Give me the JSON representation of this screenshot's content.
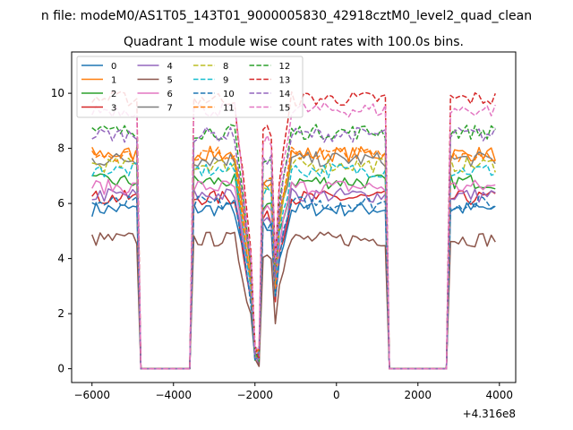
{
  "figure": {
    "suptitle": "n file: modeM0/AS1T05_143T01_9000005830_42918cztM0_level2_quad_clean"
  },
  "chart_data": {
    "type": "line",
    "title": "Quadrant 1 module wise count rates with 100.0s bins.",
    "xlabel": "",
    "ylabel": "",
    "x_offset_label": "+4.316e8",
    "xlim": [
      -6500,
      4400
    ],
    "ylim": [
      -0.5,
      11.5
    ],
    "xticks": [
      -6000,
      -4000,
      -2000,
      0,
      2000,
      4000
    ],
    "xtick_labels": [
      "−6000",
      "−4000",
      "−2000",
      "0",
      "2000",
      "4000"
    ],
    "yticks": [
      0,
      2,
      4,
      6,
      8,
      10
    ],
    "ytick_labels": [
      "0",
      "2",
      "4",
      "6",
      "8",
      "10"
    ],
    "grid": false,
    "legend_position": "top-left",
    "legend_columns": 4,
    "x_range": [
      -6000,
      3900
    ],
    "x_step": 100,
    "segments": [
      {
        "x_start": -6000,
        "x_end": -4900,
        "state": "on"
      },
      {
        "x_start": -4800,
        "x_end": -3600,
        "state": "off"
      },
      {
        "x_start": -3500,
        "x_end": 1200,
        "state": "on"
      },
      {
        "x_start": 1300,
        "x_end": 2700,
        "state": "off"
      },
      {
        "x_start": 2800,
        "x_end": 3900,
        "state": "on"
      }
    ],
    "dips": [
      {
        "x": -2000,
        "value_fraction": 0.07
      },
      {
        "x": -1900,
        "value_fraction": 0.06
      },
      {
        "x": -1500,
        "value_fraction": 0.4
      }
    ],
    "series": [
      {
        "name": "0",
        "color": "#1f77b4",
        "dash": "solid",
        "level": 5.8
      },
      {
        "name": "1",
        "color": "#ff7f0e",
        "dash": "solid",
        "level": 7.8
      },
      {
        "name": "2",
        "color": "#2ca02c",
        "dash": "solid",
        "level": 6.8
      },
      {
        "name": "3",
        "color": "#d62728",
        "dash": "solid",
        "level": 6.2
      },
      {
        "name": "4",
        "color": "#9467bd",
        "dash": "solid",
        "level": 6.3
      },
      {
        "name": "5",
        "color": "#8c564b",
        "dash": "solid",
        "level": 4.7
      },
      {
        "name": "6",
        "color": "#e377c2",
        "dash": "solid",
        "level": 6.6
      },
      {
        "name": "7",
        "color": "#7f7f7f",
        "dash": "solid",
        "level": 7.6
      },
      {
        "name": "8",
        "color": "#bcbd22",
        "dash": "dashed",
        "level": 7.4
      },
      {
        "name": "9",
        "color": "#17becf",
        "dash": "dashed",
        "level": 7.2
      },
      {
        "name": "10",
        "color": "#1f77b4",
        "dash": "dashed",
        "level": 6.0
      },
      {
        "name": "11",
        "color": "#ff7f0e",
        "dash": "dashed",
        "level": 7.8
      },
      {
        "name": "12",
        "color": "#2ca02c",
        "dash": "dashed",
        "level": 8.6
      },
      {
        "name": "13",
        "color": "#d62728",
        "dash": "dashed",
        "level": 9.8
      },
      {
        "name": "14",
        "color": "#9467bd",
        "dash": "dashed",
        "level": 8.5
      },
      {
        "name": "15",
        "color": "#e377c2",
        "dash": "dashed",
        "level": 9.4
      }
    ]
  }
}
